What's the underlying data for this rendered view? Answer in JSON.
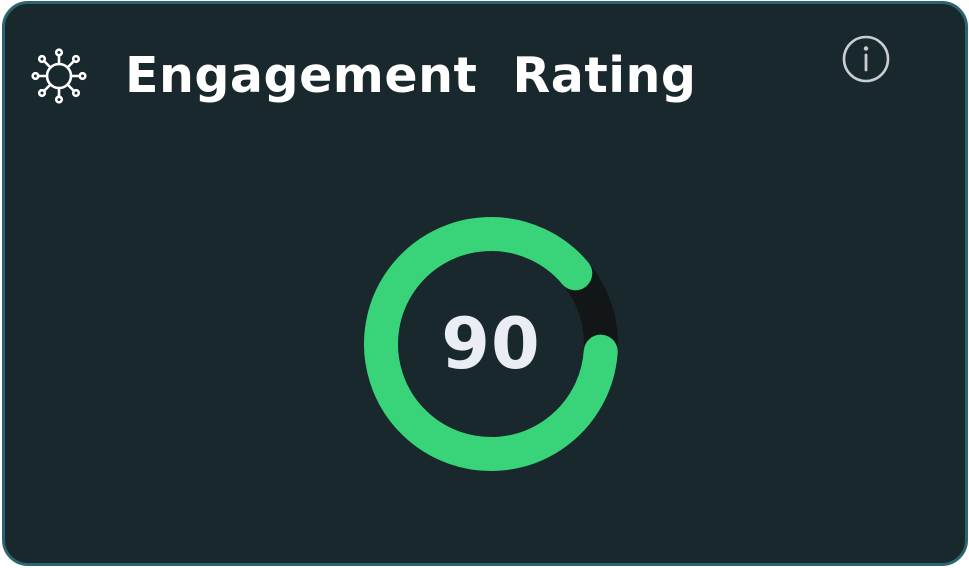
{
  "card": {
    "title": "Engagement  Rating",
    "title_icon": "network-hub-icon",
    "info_icon": "info-icon"
  },
  "gauge": {
    "value": "90",
    "fraction": 0.9,
    "progress_color": "#39d47a",
    "track_color": "#121617"
  },
  "colors": {
    "background": "#18282d",
    "border": "#2e6470",
    "text": "#ffffff"
  }
}
